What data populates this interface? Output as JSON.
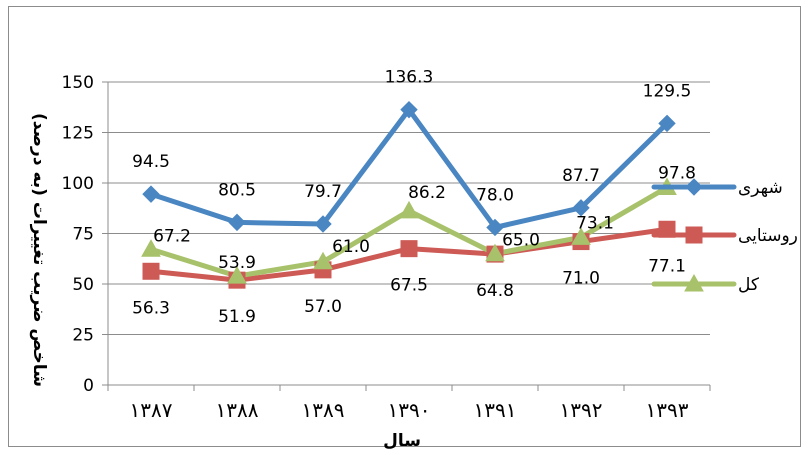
{
  "chart_data": {
    "type": "line",
    "categories": [
      "۱۳۸۷",
      "۱۳۸۸",
      "۱۳۸۹",
      "۱۳۹۰",
      "۱۳۹۱",
      "۱۳۹۲",
      "۱۳۹۳"
    ],
    "series": [
      {
        "name": "شهری",
        "values": [
          94.5,
          80.5,
          79.7,
          136.3,
          78.0,
          87.7,
          129.5
        ],
        "labels": [
          "94.5",
          "80.5",
          "79.7",
          "136.3",
          "78.0",
          "87.7",
          "129.5"
        ],
        "color": "#4a86c2",
        "marker": "diamond"
      },
      {
        "name": "روستایی",
        "values": [
          56.3,
          51.9,
          57.0,
          67.5,
          64.8,
          71.0,
          77.1
        ],
        "labels": [
          "56.3",
          "51.9",
          "57.0",
          "67.5",
          "64.8",
          "71.0",
          "77.1"
        ],
        "color": "#cd5a55",
        "marker": "square"
      },
      {
        "name": "کل",
        "values": [
          67.2,
          53.9,
          61.0,
          86.2,
          65.0,
          73.1,
          97.8
        ],
        "labels": [
          "67.2",
          "53.9",
          "61.0",
          "86.2",
          "65.0",
          "73.1",
          "97.8"
        ],
        "color": "#a7c26a",
        "marker": "triangle"
      }
    ],
    "xlabel": "سال",
    "ylabel": "شاخص ضریب تغییرات (به درصد)",
    "ylim": [
      0,
      150
    ],
    "yticks": [
      0,
      25,
      50,
      75,
      100,
      125,
      150
    ],
    "ytick_labels": [
      "0",
      "25",
      "50",
      "75",
      "100",
      "125",
      "150"
    ],
    "grid": true,
    "legend_position": "right"
  }
}
